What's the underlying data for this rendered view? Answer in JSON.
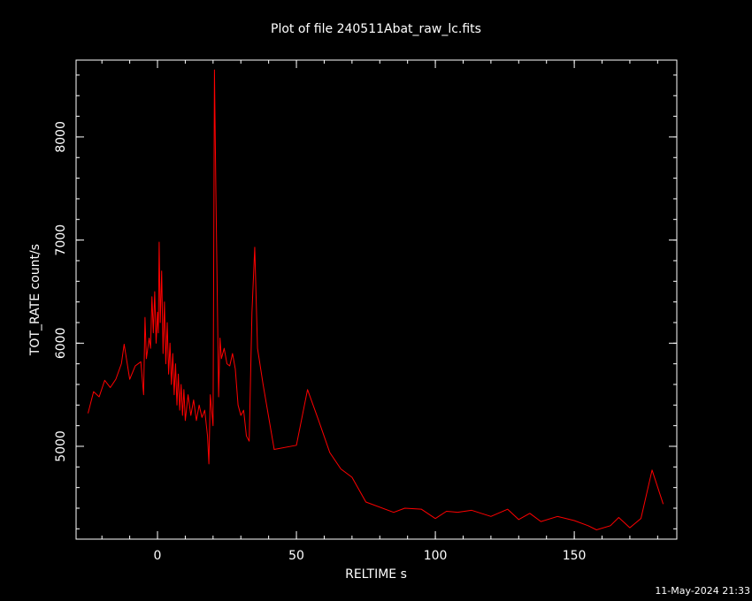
{
  "chart_data": {
    "type": "line",
    "title": "Plot of file 240511Abat_raw_lc.fits",
    "x_label": "RELTIME  s",
    "y_label": "TOT_RATE  count/s",
    "timestamp": "11-May-2024 21:33",
    "color": "#ff0000",
    "xlim": [
      -29.3,
      186.9
    ],
    "ylim": [
      4100,
      8745
    ],
    "xticks": [
      0,
      50,
      100,
      150
    ],
    "yticks": [
      5000,
      6000,
      7000,
      8000
    ],
    "xminor_step": 10,
    "yminor_step": 200,
    "x": [
      -25,
      -23,
      -21,
      -19,
      -17,
      -15,
      -13,
      -12,
      -10,
      -8,
      -6,
      -5,
      -4.5,
      -4,
      -3,
      -2.5,
      -2,
      -1.5,
      -1,
      -0.5,
      0,
      0.3,
      0.6,
      1,
      1.5,
      2,
      2.5,
      3,
      3.5,
      4,
      4.5,
      5,
      5.5,
      6,
      6.5,
      7,
      7.5,
      8,
      8.5,
      9,
      9.5,
      10,
      11,
      12,
      13,
      14,
      15,
      16,
      17,
      18,
      18.5,
      19,
      20,
      20.5,
      21,
      22,
      22.5,
      23,
      24,
      25,
      26,
      27,
      28,
      29,
      30,
      31,
      32,
      33,
      34,
      35,
      36,
      38,
      42,
      50,
      54,
      58,
      62,
      66,
      70,
      75,
      85,
      89,
      95,
      100,
      104,
      108,
      113,
      120,
      126,
      130,
      134,
      138,
      144,
      150,
      155,
      158,
      163,
      166,
      170,
      174,
      178,
      182
    ],
    "values": [
      5320,
      5530,
      5480,
      5640,
      5570,
      5650,
      5800,
      5990,
      5650,
      5780,
      5820,
      5500,
      6250,
      5850,
      6050,
      5950,
      6450,
      6100,
      6500,
      6000,
      6300,
      6100,
      6980,
      6200,
      6700,
      5900,
      6400,
      5800,
      6200,
      5700,
      6000,
      5600,
      5900,
      5500,
      5800,
      5400,
      5700,
      5350,
      5600,
      5300,
      5550,
      5250,
      5500,
      5300,
      5450,
      5250,
      5400,
      5280,
      5350,
      5100,
      4830,
      5500,
      5200,
      8650,
      7500,
      5480,
      6050,
      5850,
      5950,
      5800,
      5780,
      5900,
      5750,
      5400,
      5300,
      5350,
      5100,
      5050,
      6300,
      6930,
      5950,
      5600,
      4970,
      5010,
      5550,
      5250,
      4940,
      4780,
      4700,
      4460,
      4360,
      4400,
      4390,
      4300,
      4370,
      4360,
      4380,
      4320,
      4390,
      4290,
      4350,
      4270,
      4320,
      4280,
      4230,
      4190,
      4230,
      4310,
      4210,
      4300,
      4770,
      4440
    ]
  }
}
